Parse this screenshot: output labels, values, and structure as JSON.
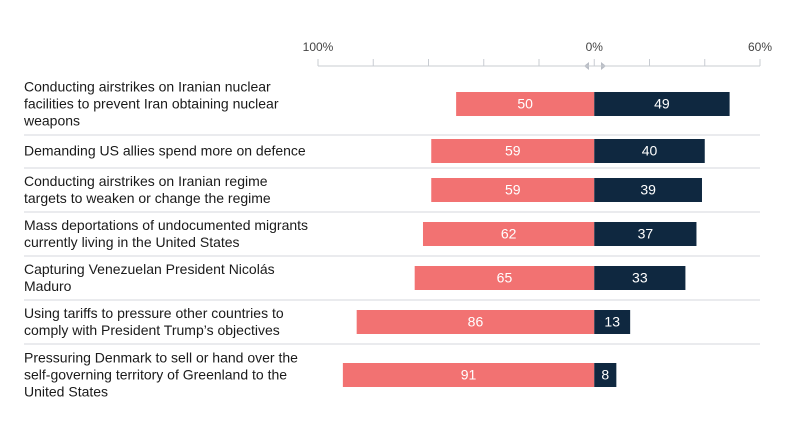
{
  "chart_data": {
    "type": "diverging-bar",
    "categories": [
      "Conducting airstrikes on Iranian nuclear facilities to prevent Iran obtaining nuclear weapons",
      "Demanding US allies spend more on defence",
      "Conducting airstrikes on Iranian regime targets to weaken or change the regime",
      "Mass deportations of undocumented migrants currently living in the United States",
      "Capturing Venezuelan President Nicolás Maduro",
      "Using tariffs to pressure other countries to comply with President Trump’s objectives",
      "Pressuring Denmark to sell or hand over the self-governing territory of Greenland to the United States"
    ],
    "series": [
      {
        "color": "#f27272",
        "values": [
          -50,
          -59,
          -59,
          -62,
          -65,
          -86,
          -91
        ],
        "value_labels": [
          "50",
          "59",
          "59",
          "62",
          "65",
          "86",
          "91"
        ]
      },
      {
        "color": "#0f2840",
        "values": [
          49,
          40,
          39,
          37,
          33,
          13,
          8
        ]
      }
    ],
    "xlim": [
      -100,
      60
    ],
    "xticks": [
      {
        "value": -100,
        "label": "100%"
      },
      {
        "value": 0,
        "label": "0%"
      },
      {
        "value": 60,
        "label": "60%"
      }
    ],
    "minor_xticks": [
      -80,
      -60,
      -40,
      -20,
      20,
      40
    ]
  }
}
